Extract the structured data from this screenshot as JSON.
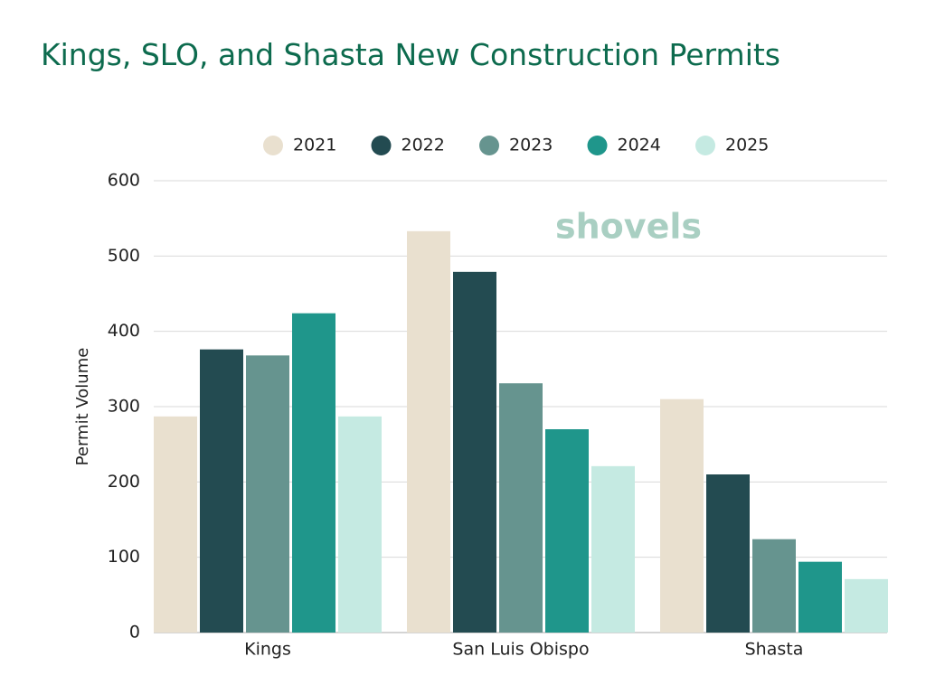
{
  "chart_data": {
    "type": "bar",
    "title": "Kings, SLO, and Shasta New Construction Permits",
    "watermark": "shovels",
    "y_label": "Permit Volume",
    "categories": [
      "Kings",
      "San Luis Obispo",
      "Shasta"
    ],
    "series": [
      {
        "name": "2021",
        "color": "#e9e0cf",
        "values": [
          287,
          533,
          310
        ]
      },
      {
        "name": "2022",
        "color": "#234b51",
        "values": [
          376,
          479,
          210
        ]
      },
      {
        "name": "2023",
        "color": "#66948f",
        "values": [
          368,
          331,
          124
        ]
      },
      {
        "name": "2024",
        "color": "#1f968b",
        "values": [
          424,
          270,
          94
        ]
      },
      {
        "name": "2025",
        "color": "#c5eae2",
        "values": [
          287,
          221,
          71
        ]
      }
    ],
    "ylim": [
      0,
      600
    ],
    "yticks": [
      0,
      100,
      200,
      300,
      400,
      500,
      600
    ],
    "grid": true,
    "legend": "top"
  }
}
